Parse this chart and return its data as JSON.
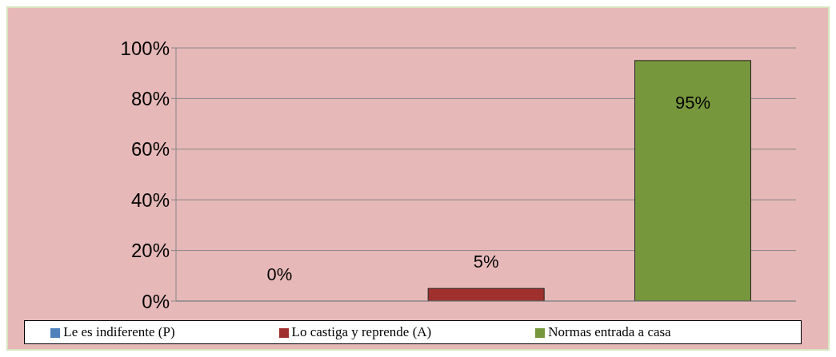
{
  "chart_data": {
    "type": "bar",
    "categories": [
      null,
      null,
      null
    ],
    "stacked": true,
    "series": [
      {
        "name": "Le es indiferente (P)",
        "color": "#4f81bd",
        "values": [
          0,
          null,
          null
        ],
        "value_labels": [
          "0%",
          null,
          null
        ]
      },
      {
        "name": "Lo castiga y reprende (A)",
        "color": "#a0302d",
        "values": [
          null,
          5,
          null
        ],
        "value_labels": [
          null,
          "5%",
          null
        ]
      },
      {
        "name": "Normas entrada a casa",
        "color": "#77973c",
        "values": [
          null,
          null,
          95
        ],
        "value_labels": [
          null,
          null,
          "95%"
        ]
      }
    ],
    "ylim": [
      0,
      100
    ],
    "yticks": [
      {
        "value": 0,
        "label": "0%"
      },
      {
        "value": 20,
        "label": "20%"
      },
      {
        "value": 40,
        "label": "40%"
      },
      {
        "value": 60,
        "label": "60%"
      },
      {
        "value": 80,
        "label": "80%"
      },
      {
        "value": 100,
        "label": "100%"
      }
    ],
    "grid": "y",
    "legend": "bottom"
  }
}
